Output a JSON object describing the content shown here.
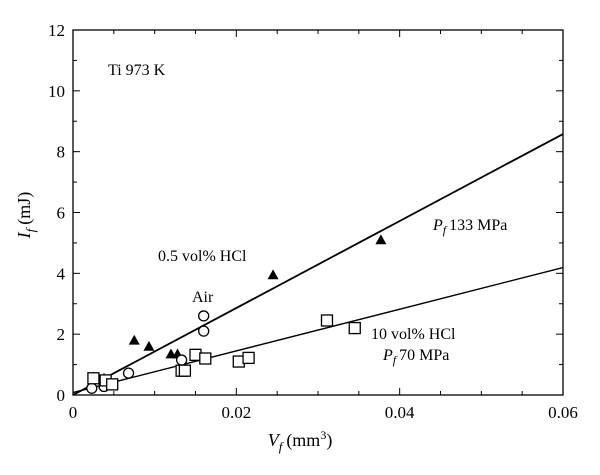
{
  "chart_data": {
    "type": "scatter",
    "xlabel_main": "V",
    "xlabel_sub": "f",
    "xlabel_unit": "(mm",
    "xlabel_sup": "3",
    "xlabel_close": ")",
    "ylabel_main": "I",
    "ylabel_sub": "f",
    "ylabel_unit": "(mJ)",
    "xlim": [
      0,
      0.06
    ],
    "ylim": [
      0,
      12
    ],
    "x_ticks": [
      0,
      0.02,
      0.04,
      0.06
    ],
    "x_tick_labels": [
      "0",
      "0.02",
      "0.04",
      "0.06"
    ],
    "y_ticks": [
      0,
      2,
      4,
      6,
      8,
      10,
      12
    ],
    "y_tick_labels": [
      "0",
      "2",
      "4",
      "6",
      "8",
      "10",
      "12"
    ],
    "grid": false,
    "annotations": {
      "material": "Ti 973 K",
      "hcl_05": "0.5 vol% HCl",
      "air": "Air",
      "pf133_main": "P",
      "pf133_sub": "f",
      "pf133_val": "133 MPa",
      "hcl_10": "10 vol% HCl",
      "pf70_main": "P",
      "pf70_sub": "f",
      "pf70_val": "70 MPa"
    },
    "series": [
      {
        "marker": "triangle",
        "points": [
          [
            0.0038,
            0.55
          ],
          [
            0.0075,
            1.8
          ],
          [
            0.0093,
            1.6
          ],
          [
            0.012,
            1.35
          ],
          [
            0.0128,
            1.35
          ],
          [
            0.0245,
            3.95
          ],
          [
            0.0377,
            5.1
          ]
        ]
      },
      {
        "marker": "circle",
        "points": [
          [
            0.0023,
            0.22
          ],
          [
            0.0038,
            0.28
          ],
          [
            0.0068,
            0.72
          ],
          [
            0.0133,
            1.15
          ],
          [
            0.016,
            2.1
          ],
          [
            0.016,
            2.6
          ]
        ]
      },
      {
        "marker": "square",
        "points": [
          [
            0.0025,
            0.55
          ],
          [
            0.004,
            0.48
          ],
          [
            0.0048,
            0.35
          ],
          [
            0.0133,
            0.8
          ],
          [
            0.0137,
            0.8
          ],
          [
            0.015,
            1.32
          ],
          [
            0.0162,
            1.2
          ],
          [
            0.0203,
            1.1
          ],
          [
            0.0215,
            1.22
          ],
          [
            0.0311,
            2.45
          ],
          [
            0.0345,
            2.2
          ]
        ]
      }
    ],
    "fit_lines": [
      {
        "slope": 143,
        "intercept": 0.0
      },
      {
        "slope": 68.5,
        "intercept": 0.08
      }
    ]
  }
}
